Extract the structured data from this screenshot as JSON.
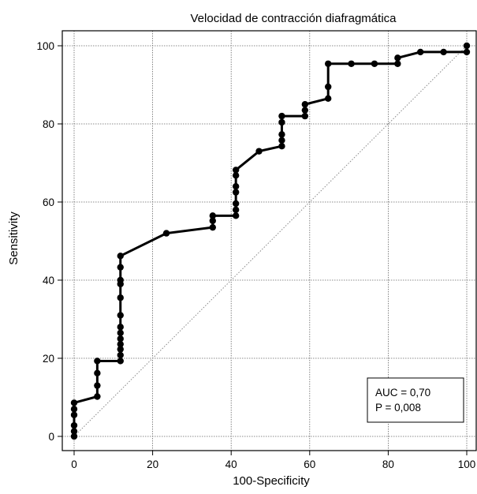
{
  "chart_data": {
    "type": "line",
    "title": "Velocidad de contracción diafragmática",
    "xlabel": "100-Specificity",
    "ylabel": "Sensitivity",
    "xlim": [
      0,
      100
    ],
    "ylim": [
      0,
      100
    ],
    "xticks": [
      "0",
      "20",
      "40",
      "60",
      "80",
      "100"
    ],
    "yticks": [
      "0",
      "20",
      "40",
      "60",
      "80",
      "100"
    ],
    "grid": true,
    "annotation": [
      "AUC = 0,70",
      "P = 0,008"
    ],
    "reference_line": {
      "from": [
        0,
        0
      ],
      "to": [
        100,
        100
      ],
      "style": "dotted"
    },
    "roc_points": [
      [
        0,
        0
      ],
      [
        0,
        1.3
      ],
      [
        0,
        2.8
      ],
      [
        0,
        5.5
      ],
      [
        0,
        7
      ],
      [
        0,
        8.6
      ],
      [
        5.9,
        10.2
      ],
      [
        5.9,
        13
      ],
      [
        5.9,
        16.2
      ],
      [
        5.9,
        19.3
      ],
      [
        11.8,
        19.3
      ],
      [
        11.8,
        20.8
      ],
      [
        11.8,
        22.3
      ],
      [
        11.8,
        23.6
      ],
      [
        11.8,
        25
      ],
      [
        11.8,
        26.5
      ],
      [
        11.8,
        28
      ],
      [
        11.8,
        31
      ],
      [
        11.8,
        35.5
      ],
      [
        11.8,
        39
      ],
      [
        11.8,
        40
      ],
      [
        11.8,
        43.3
      ],
      [
        11.8,
        46.2
      ],
      [
        23.5,
        52
      ],
      [
        35.3,
        53.5
      ],
      [
        35.3,
        55.2
      ],
      [
        35.3,
        56.5
      ],
      [
        41.2,
        56.5
      ],
      [
        41.2,
        58
      ],
      [
        41.2,
        59.6
      ],
      [
        41.2,
        62.5
      ],
      [
        41.2,
        64
      ],
      [
        41.2,
        66.8
      ],
      [
        41.2,
        68.2
      ],
      [
        47.1,
        73
      ],
      [
        52.9,
        74.3
      ],
      [
        52.9,
        75.8
      ],
      [
        52.9,
        77.3
      ],
      [
        52.9,
        80.4
      ],
      [
        52.9,
        82
      ],
      [
        58.8,
        82
      ],
      [
        58.8,
        83.5
      ],
      [
        58.8,
        85
      ],
      [
        64.7,
        86.5
      ],
      [
        64.7,
        89.5
      ],
      [
        64.7,
        95.4
      ],
      [
        70.6,
        95.4
      ],
      [
        76.5,
        95.4
      ],
      [
        82.4,
        95.4
      ],
      [
        82.4,
        96.9
      ],
      [
        88.2,
        98.4
      ],
      [
        94.1,
        98.4
      ],
      [
        100,
        98.4
      ],
      [
        100,
        100
      ]
    ]
  }
}
